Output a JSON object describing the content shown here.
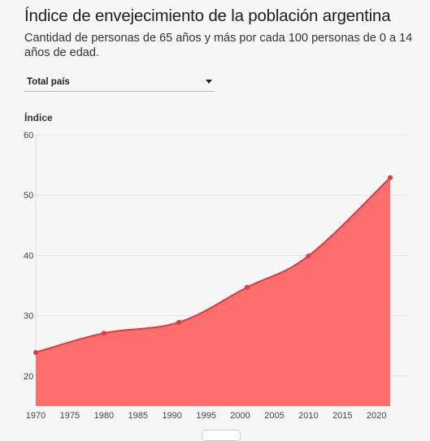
{
  "header": {
    "title": "Índice de envejecimiento de la población argentina",
    "subtitle": "Cantidad de personas de 65 años y más por cada 100 personas de 0 a 14 años de edad."
  },
  "filter": {
    "selected": "Total país"
  },
  "colors": {
    "area_fill": "#ff6e6e",
    "line": "#e8363a",
    "point": "#e8363a"
  },
  "chart_data": {
    "type": "area",
    "ylabel": "Índice",
    "xlim": [
      1970,
      2022
    ],
    "ylim": [
      15,
      60
    ],
    "x_ticks": [
      1970,
      1975,
      1980,
      1985,
      1990,
      1995,
      2000,
      2005,
      2010,
      2015,
      2020
    ],
    "y_ticks": [
      20,
      30,
      40,
      50,
      60
    ],
    "grid": true,
    "series": [
      {
        "x": [
          1970,
          1980,
          1991,
          2001,
          2010,
          2022
        ],
        "values": [
          23.9,
          27.1,
          28.9,
          34.7,
          39.9,
          52.9
        ]
      }
    ]
  }
}
